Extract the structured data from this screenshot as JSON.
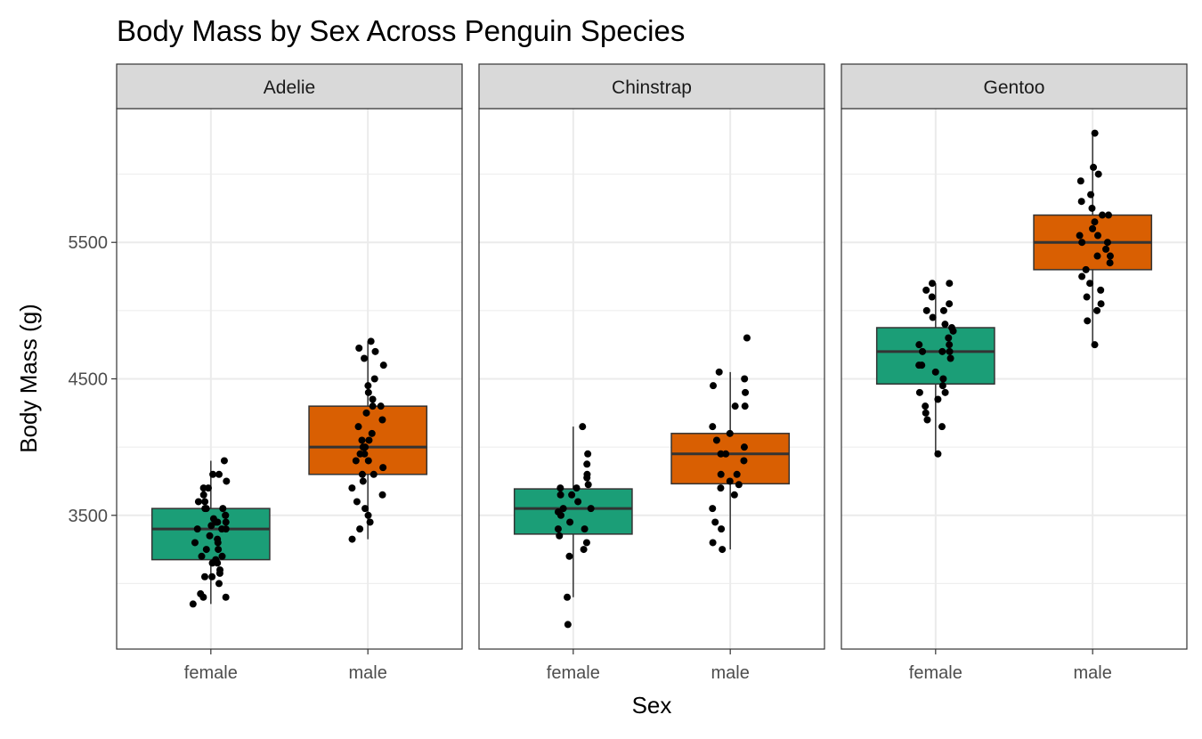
{
  "chart_data": {
    "type": "boxplot",
    "title": "Body Mass by Sex Across Penguin Species",
    "xlabel": "Sex",
    "ylabel": "Body Mass (g)",
    "ylim": [
      2520,
      6480
    ],
    "y_major_ticks": [
      3500,
      4500,
      5500
    ],
    "y_minor_ticks": [
      3000,
      4000,
      5000,
      6000
    ],
    "y_tick_labels": [
      "3500",
      "4500",
      "5500"
    ],
    "categories": [
      "female",
      "male"
    ],
    "fill_colors": {
      "female": "#1B9E77",
      "male": "#D95F02"
    },
    "grid": true,
    "facets": [
      {
        "label": "Adelie",
        "groups": [
          {
            "sex": "female",
            "min": 2850,
            "q1": 3175,
            "median": 3400,
            "q3": 3550,
            "max": 3900,
            "points": [
              2850,
              2900,
              2900,
              2925,
              3000,
              3050,
              3050,
              3075,
              3100,
              3150,
              3150,
              3175,
              3200,
              3200,
              3250,
              3250,
              3300,
              3300,
              3325,
              3350,
              3400,
              3400,
              3400,
              3425,
              3450,
              3450,
              3450,
              3475,
              3500,
              3500,
              3550,
              3550,
              3550,
              3600,
              3600,
              3650,
              3700,
              3700,
              3750,
              3800,
              3800,
              3900
            ]
          },
          {
            "sex": "male",
            "min": 3325,
            "q1": 3800,
            "median": 4000,
            "q3": 4300,
            "max": 4775,
            "points": [
              3325,
              3400,
              3450,
              3500,
              3550,
              3600,
              3650,
              3700,
              3750,
              3800,
              3800,
              3850,
              3900,
              3900,
              3950,
              3950,
              4000,
              4000,
              4050,
              4050,
              4100,
              4150,
              4200,
              4250,
              4300,
              4300,
              4350,
              4400,
              4450,
              4500,
              4600,
              4650,
              4700,
              4725,
              4775
            ]
          }
        ]
      },
      {
        "label": "Chinstrap",
        "groups": [
          {
            "sex": "female",
            "min": 2900,
            "q1": 3362.5,
            "median": 3550,
            "q3": 3693.75,
            "max": 4150,
            "points": [
              2700,
              2900,
              3200,
              3250,
              3300,
              3350,
              3400,
              3400,
              3450,
              3500,
              3525,
              3550,
              3550,
              3600,
              3650,
              3650,
              3700,
              3700,
              3725,
              3775,
              3800,
              3875,
              3950,
              4150
            ]
          },
          {
            "sex": "male",
            "min": 3250,
            "q1": 3731.25,
            "median": 3950,
            "q3": 4100,
            "max": 4550,
            "points": [
              3250,
              3300,
              3400,
              3450,
              3550,
              3650,
              3700,
              3725,
              3750,
              3800,
              3800,
              3900,
              3950,
              3950,
              4000,
              4050,
              4100,
              4150,
              4300,
              4300,
              4400,
              4450,
              4500,
              4550,
              4800
            ]
          }
        ]
      },
      {
        "label": "Gentoo",
        "groups": [
          {
            "sex": "female",
            "min": 3950,
            "q1": 4462.5,
            "median": 4700,
            "q3": 4875,
            "max": 5200,
            "points": [
              3950,
              4150,
              4200,
              4250,
              4300,
              4350,
              4400,
              4400,
              4450,
              4500,
              4550,
              4600,
              4600,
              4650,
              4700,
              4700,
              4700,
              4750,
              4750,
              4800,
              4850,
              4875,
              4900,
              4950,
              5000,
              5000,
              5050,
              5100,
              5150,
              5200,
              5200
            ]
          },
          {
            "sex": "male",
            "min": 4750,
            "q1": 5300,
            "median": 5500,
            "q3": 5700,
            "max": 6300,
            "points": [
              4750,
              4925,
              5000,
              5050,
              5100,
              5150,
              5200,
              5250,
              5300,
              5350,
              5400,
              5400,
              5450,
              5500,
              5500,
              5550,
              5550,
              5600,
              5650,
              5700,
              5700,
              5750,
              5800,
              5850,
              5950,
              6000,
              6050,
              6300
            ]
          }
        ]
      }
    ]
  }
}
